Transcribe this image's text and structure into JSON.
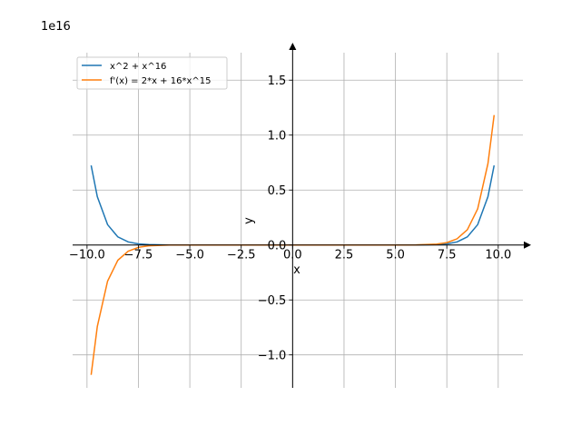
{
  "chart_data": {
    "type": "line",
    "title": "",
    "xlabel": "x",
    "ylabel": "y",
    "y_offset_label": "1e16",
    "xlim": [
      -10.7,
      11.2
    ],
    "ylim": [
      -1.3,
      1.75
    ],
    "xticks": [
      -10.0,
      -7.5,
      -5.0,
      -2.5,
      0.0,
      2.5,
      5.0,
      7.5,
      10.0
    ],
    "xtick_labels": [
      "−10.0",
      "−7.5",
      "−5.0",
      "−2.5",
      "0.0",
      "2.5",
      "5.0",
      "7.5",
      "10.0"
    ],
    "yticks": [
      -1.0,
      -0.5,
      0.0,
      0.5,
      1.0,
      1.5
    ],
    "ytick_labels": [
      "−1.0",
      "−0.5",
      "0.0",
      "0.5",
      "1.0",
      "1.5"
    ],
    "grid": true,
    "legend_position": "top-left",
    "series": [
      {
        "name": "x^2 + x^16",
        "color": "#1f77b4",
        "x": [
          -9.8,
          -9.5,
          -9.0,
          -8.5,
          -8.0,
          -7.5,
          -7.0,
          -6.0,
          -5.0,
          -3.0,
          0.0,
          3.0,
          5.0,
          6.0,
          7.0,
          7.5,
          8.0,
          8.5,
          9.0,
          9.5,
          9.8
        ],
        "y": [
          0.724,
          0.44,
          0.185,
          0.074,
          0.028,
          0.01,
          0.0033,
          0.00028,
          1.53e-05,
          0.0,
          0.0,
          0.0,
          1.53e-05,
          0.00028,
          0.0033,
          0.01,
          0.028,
          0.074,
          0.185,
          0.44,
          0.724
        ]
      },
      {
        "name": "f'(x) = 2*x + 16*x^15",
        "color": "#ff7f0e",
        "x": [
          -9.8,
          -9.5,
          -9.0,
          -8.5,
          -8.0,
          -7.5,
          -7.0,
          -6.0,
          -5.0,
          -3.0,
          0.0,
          3.0,
          5.0,
          6.0,
          7.0,
          7.5,
          8.0,
          8.5,
          9.0,
          9.5,
          9.8
        ],
        "y": [
          -1.182,
          -0.741,
          -0.329,
          -0.139,
          -0.056,
          -0.0214,
          -0.0076,
          -0.00075,
          -4.9e-05,
          0.0,
          0.0,
          0.0,
          4.9e-05,
          0.00075,
          0.0076,
          0.0214,
          0.056,
          0.139,
          0.329,
          0.741,
          1.182
        ]
      }
    ]
  }
}
